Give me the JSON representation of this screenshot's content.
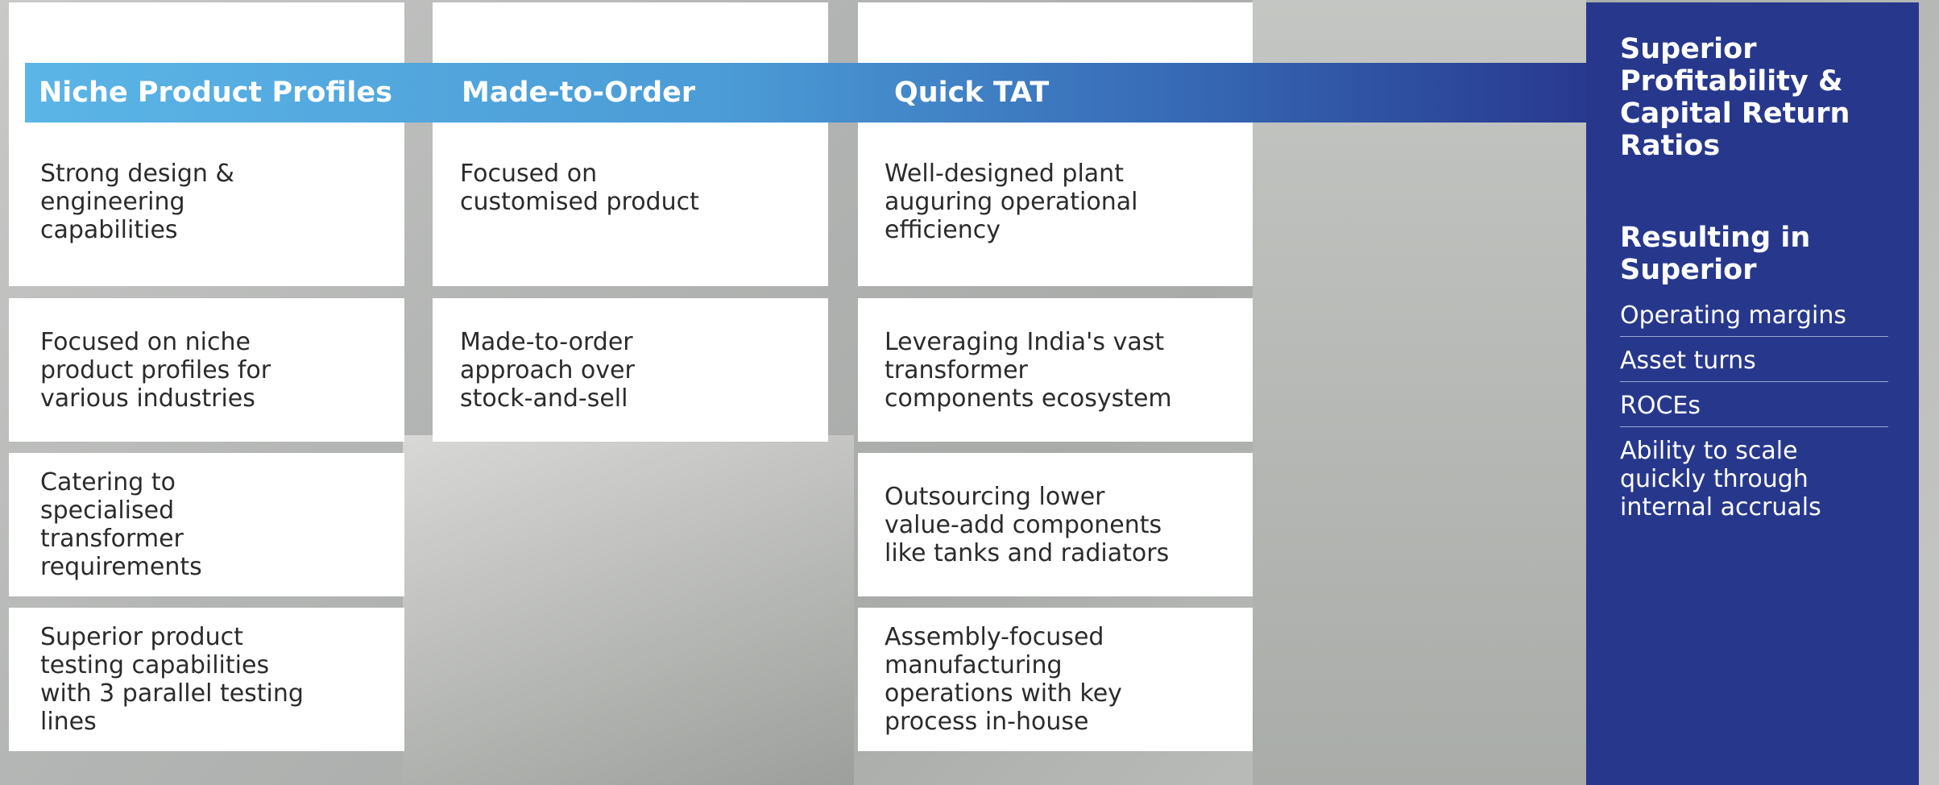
{
  "columns": [
    {
      "title": "Niche Product Profiles",
      "items": [
        "Strong design & engineering capabilities",
        "Focused on niche product profiles for various industries",
        "Catering to specialised transformer requirements",
        "Superior product testing capabilities with 3 parallel testing lines"
      ]
    },
    {
      "title": "Made-to-Order",
      "items": [
        "Focused on customised product",
        "Made-to-order approach over stock-and-sell"
      ]
    },
    {
      "title": "Quick TAT",
      "items": [
        "Well-designed plant auguring operational efficiency",
        "Leveraging India's vast transformer components ecosystem",
        "Outsourcing lower value-add components like tanks and radiators",
        "Assembly-focused manufacturing operations with key process in-house"
      ]
    }
  ],
  "panel": {
    "title": "Superior Profitability & Capital Return Ratios",
    "subtitle": "Resulting in Superior",
    "items": [
      "Operating margins",
      "Asset turns",
      "ROCEs",
      "Ability to scale quickly through internal accruals"
    ]
  }
}
